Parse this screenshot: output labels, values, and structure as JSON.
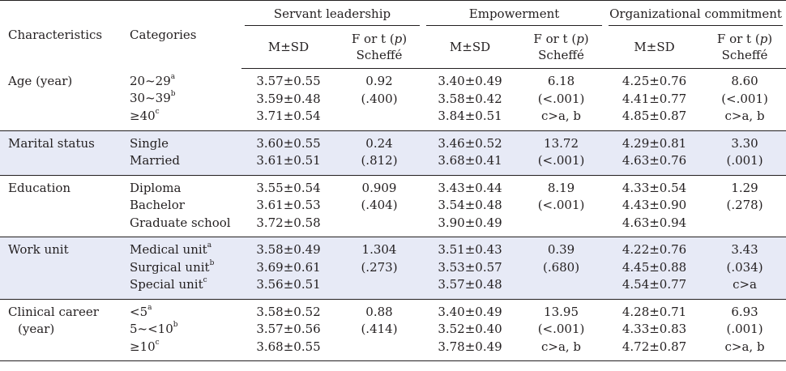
{
  "header": {
    "characteristics": "Characteristics",
    "categories": "Categories",
    "groups": [
      "Servant leadership",
      "Empowerment",
      "Organizational commitment"
    ],
    "ms": "M±SD",
    "ftest_line1": "F or t (p)",
    "ftest_line2": "Scheffé"
  },
  "rows": [
    {
      "characteristic": [
        "Age (year)"
      ],
      "categories": [
        {
          "label": "20~29",
          "sup": "a"
        },
        {
          "label": "30~39",
          "sup": "b"
        },
        {
          "label": "≥40",
          "sup": "c"
        }
      ],
      "sl_ms": [
        "3.57±0.55",
        "3.59±0.48",
        "3.71±0.54"
      ],
      "sl_f": [
        "0.92",
        "(.400)"
      ],
      "em_ms": [
        "3.40±0.49",
        "3.58±0.42",
        "3.84±0.51"
      ],
      "em_f": [
        "6.18",
        "(<.001)",
        "c>a, b"
      ],
      "oc_ms": [
        "4.25±0.76",
        "4.41±0.77",
        "4.85±0.87"
      ],
      "oc_f": [
        "8.60",
        "(<.001)",
        "c>a, b"
      ]
    },
    {
      "characteristic": [
        "Marital status"
      ],
      "categories": [
        {
          "label": "Single",
          "sup": ""
        },
        {
          "label": "Married",
          "sup": ""
        }
      ],
      "sl_ms": [
        "3.60±0.55",
        "3.61±0.51"
      ],
      "sl_f": [
        "0.24",
        "(.812)"
      ],
      "em_ms": [
        "3.46±0.52",
        "3.68±0.41"
      ],
      "em_f": [
        "13.72",
        "(<.001)"
      ],
      "oc_ms": [
        "4.29±0.81",
        "4.63±0.76"
      ],
      "oc_f": [
        "3.30",
        "(.001)"
      ]
    },
    {
      "characteristic": [
        "Education"
      ],
      "categories": [
        {
          "label": "Diploma",
          "sup": ""
        },
        {
          "label": "Bachelor",
          "sup": ""
        },
        {
          "label": "Graduate school",
          "sup": ""
        }
      ],
      "sl_ms": [
        "3.55±0.54",
        "3.61±0.53",
        "3.72±0.58"
      ],
      "sl_f": [
        "0.909",
        "(.404)"
      ],
      "em_ms": [
        "3.43±0.44",
        "3.54±0.48",
        "3.90±0.49"
      ],
      "em_f": [
        "8.19",
        "(<.001)"
      ],
      "oc_ms": [
        "4.33±0.54",
        "4.43±0.90",
        "4.63±0.94"
      ],
      "oc_f": [
        "1.29",
        "(.278)"
      ]
    },
    {
      "characteristic": [
        "Work unit"
      ],
      "categories": [
        {
          "label": "Medical unit",
          "sup": "a"
        },
        {
          "label": "Surgical unit",
          "sup": "b"
        },
        {
          "label": "Special unit",
          "sup": "c"
        }
      ],
      "sl_ms": [
        "3.58±0.49",
        "3.69±0.61",
        "3.56±0.51"
      ],
      "sl_f": [
        "1.304",
        "(.273)"
      ],
      "em_ms": [
        "3.51±0.43",
        "3.53±0.57",
        "3.57±0.48"
      ],
      "em_f": [
        "0.39",
        "(.680)"
      ],
      "oc_ms": [
        "4.22±0.76",
        "4.45±0.88",
        "4.54±0.77"
      ],
      "oc_f": [
        "3.43",
        "(.034)",
        "c>a"
      ]
    },
    {
      "characteristic": [
        "Clinical career",
        "(year)"
      ],
      "categories": [
        {
          "label": "<5",
          "sup": "a"
        },
        {
          "label": "5~<10",
          "sup": "b"
        },
        {
          "label": "≥10",
          "sup": "c"
        }
      ],
      "sl_ms": [
        "3.58±0.52",
        "3.57±0.56",
        "3.68±0.55"
      ],
      "sl_f": [
        "0.88",
        "(.414)"
      ],
      "em_ms": [
        "3.40±0.49",
        "3.52±0.40",
        "3.78±0.49"
      ],
      "em_f": [
        "13.95",
        "(<.001)",
        "c>a, b"
      ],
      "oc_ms": [
        "4.28±0.71",
        "4.33±0.83",
        "4.72±0.87"
      ],
      "oc_f": [
        "6.93",
        "(.001)",
        "c>a, b"
      ]
    }
  ],
  "colors": {
    "shade": "#e7eaf6",
    "text": "#231f20"
  }
}
